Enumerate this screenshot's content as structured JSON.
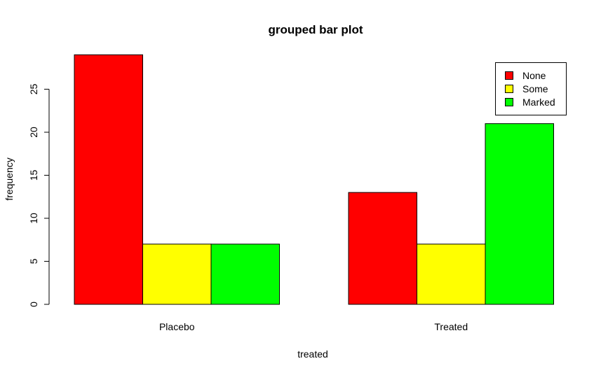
{
  "chart_data": {
    "type": "bar",
    "mode": "grouped",
    "title": "grouped bar plot",
    "xlabel": "treated",
    "ylabel": "frequency",
    "categories": [
      "Placebo",
      "Treated"
    ],
    "ylim": [
      0,
      29
    ],
    "yticks": [
      0,
      5,
      10,
      15,
      20,
      25
    ],
    "series": [
      {
        "name": "None",
        "color": "#ff0000",
        "values": [
          29,
          13
        ]
      },
      {
        "name": "Some",
        "color": "#ffff00",
        "values": [
          7,
          7
        ]
      },
      {
        "name": "Marked",
        "color": "#00ff00",
        "values": [
          7,
          21
        ]
      }
    ],
    "legend_position": "top-right",
    "grid": false
  }
}
